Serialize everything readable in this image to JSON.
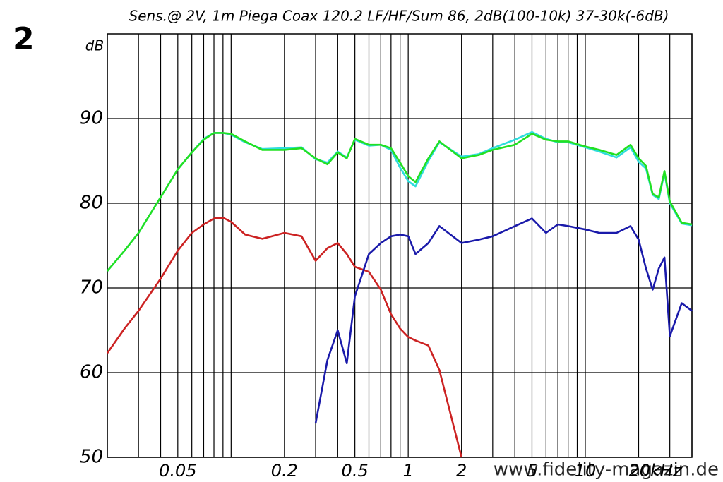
{
  "chart_data": {
    "type": "line",
    "title": "Sens.@ 2V, 1m Piega Coax 120.2 LF/HF/Sum  86, 2dB(100-10k) 37-30k(-6dB)",
    "figure_number": "2",
    "y_label": "dB",
    "watermark": "www.fidelity-magazin.de",
    "xscale": "log",
    "grid": true,
    "xlim": [
      0.02,
      40
    ],
    "ylim": [
      50,
      100
    ],
    "yticks": [
      50,
      60,
      70,
      80,
      90
    ],
    "xticks": [
      0.05,
      0.2,
      0.5,
      1,
      2,
      5,
      10,
      {
        "value": 20,
        "label": "20kHz"
      }
    ],
    "x_minor_ticks": [
      0.02,
      0.03,
      0.04,
      0.06,
      0.07,
      0.08,
      0.09,
      0.1,
      0.3,
      0.4,
      0.6,
      0.7,
      0.8,
      0.9,
      3,
      4,
      6,
      7,
      8,
      9,
      30,
      40
    ],
    "x": [
      0.02,
      0.025,
      0.03,
      0.04,
      0.05,
      0.06,
      0.07,
      0.08,
      0.09,
      0.1,
      0.12,
      0.15,
      0.2,
      0.25,
      0.3,
      0.35,
      0.4,
      0.45,
      0.5,
      0.6,
      0.7,
      0.8,
      0.9,
      1,
      1.1,
      1.3,
      1.5,
      2,
      2.5,
      3,
      4,
      5,
      6,
      7,
      8,
      10,
      12,
      15,
      18,
      20,
      22,
      24,
      26,
      28,
      30,
      35,
      40
    ],
    "series": [
      {
        "color": "#2fdcdc",
        "values": [
          72,
          74.4,
          76.5,
          80.7,
          84,
          86,
          87.6,
          88.3,
          88.3,
          88.1,
          87.2,
          86.4,
          86.5,
          86.6,
          85.2,
          84.8,
          86.1,
          85.4,
          87.5,
          86.8,
          86.9,
          86.3,
          84.2,
          82.6,
          82,
          85,
          87.2,
          85.5,
          85.8,
          86.5,
          87.5,
          88.4,
          87.6,
          87.2,
          87.2,
          86.6,
          86.1,
          85.4,
          86.6,
          84.9,
          84.1,
          81,
          80.5,
          83.6,
          80,
          77.6,
          77.4
        ]
      },
      {
        "color": "#22e022",
        "values": [
          72,
          74.4,
          76.5,
          80.7,
          84,
          86,
          87.5,
          88.3,
          88.3,
          88.2,
          87.3,
          86.3,
          86.3,
          86.5,
          85.3,
          84.6,
          86,
          85.3,
          87.6,
          86.9,
          86.9,
          86.5,
          84.8,
          83.2,
          82.5,
          85.3,
          87.3,
          85.3,
          85.7,
          86.3,
          86.9,
          88.2,
          87.5,
          87.3,
          87.3,
          86.7,
          86.3,
          85.7,
          86.9,
          85.3,
          84.4,
          81.1,
          80.7,
          83.8,
          80.2,
          77.7,
          77.5
        ]
      },
      {
        "color": "#cc2222",
        "values": [
          62.3,
          65.2,
          67.3,
          71.1,
          74.4,
          76.5,
          77.5,
          78.2,
          78.3,
          77.8,
          76.3,
          75.8,
          76.5,
          76.1,
          73.2,
          74.7,
          75.3,
          74,
          72.5,
          71.9,
          69.8,
          66.9,
          65.2,
          64.2,
          63.8,
          63.2,
          60.3,
          50,
          null,
          null,
          null,
          null,
          null,
          null,
          null,
          null,
          null,
          null,
          null,
          null,
          null,
          null,
          null,
          null,
          null,
          null,
          null
        ]
      },
      {
        "color": "#1a1aaa",
        "values": [
          null,
          null,
          null,
          null,
          null,
          null,
          null,
          null,
          null,
          null,
          null,
          null,
          null,
          null,
          54,
          61.5,
          65,
          61.1,
          69,
          74,
          75.3,
          76.1,
          76.3,
          76.1,
          74,
          75.3,
          77.3,
          75.3,
          75.7,
          76.1,
          77.3,
          78.2,
          76.5,
          77.5,
          77.3,
          76.9,
          76.5,
          76.5,
          77.3,
          75.7,
          72.3,
          69.8,
          72.3,
          73.6,
          64.3,
          68.2,
          67.3
        ]
      }
    ]
  }
}
